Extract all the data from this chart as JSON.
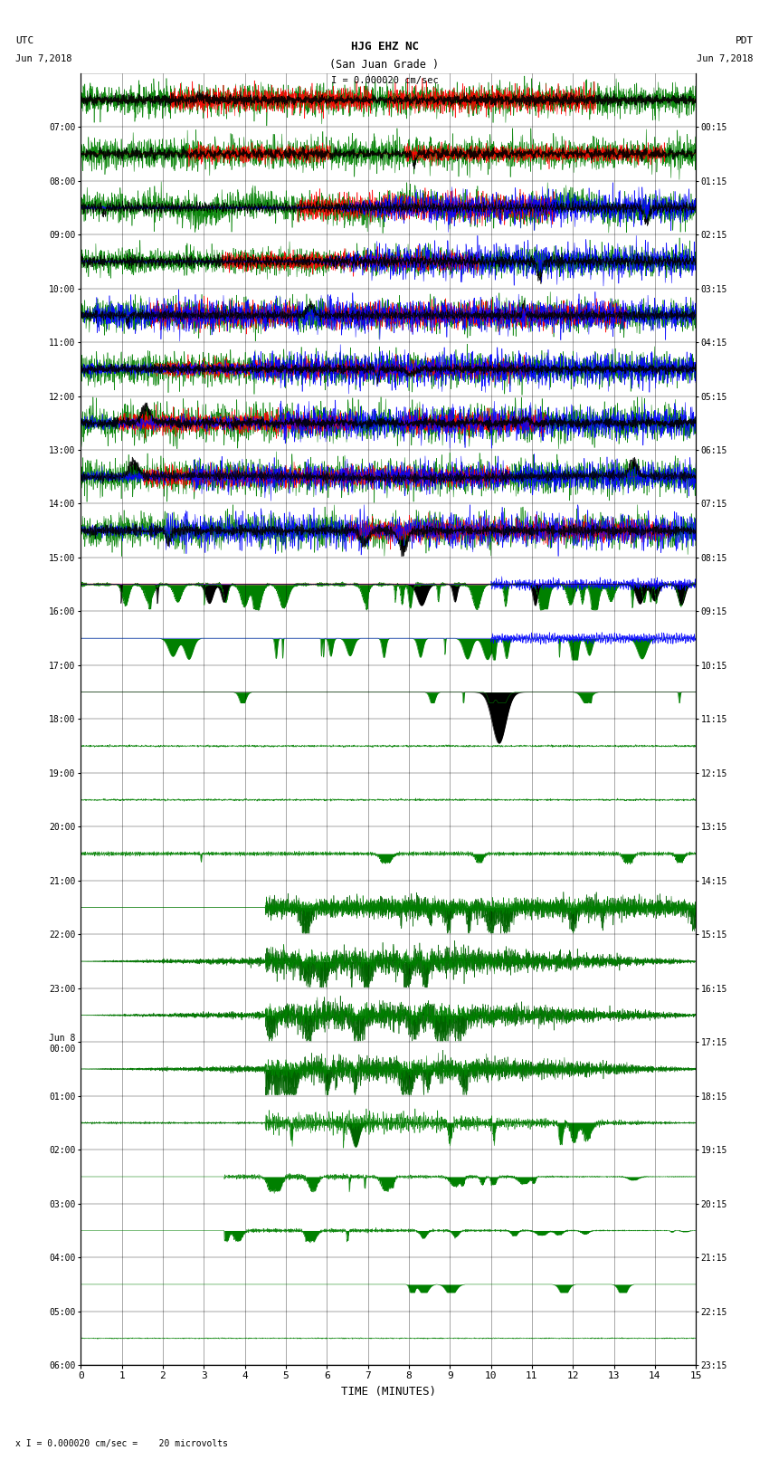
{
  "title_line1": "HJG EHZ NC",
  "title_line2": "(San Juan Grade )",
  "scale_label": "I = 0.000020 cm/sec",
  "xlabel": "TIME (MINUTES)",
  "footer_label": "x I = 0.000020 cm/sec =    20 microvolts",
  "utc_times": [
    "07:00",
    "08:00",
    "09:00",
    "10:00",
    "11:00",
    "12:00",
    "13:00",
    "14:00",
    "15:00",
    "16:00",
    "17:00",
    "18:00",
    "19:00",
    "20:00",
    "21:00",
    "22:00",
    "23:00",
    "Jun 8\n00:00",
    "01:00",
    "02:00",
    "03:00",
    "04:00",
    "05:00",
    "06:00"
  ],
  "pdt_times": [
    "00:15",
    "01:15",
    "02:15",
    "03:15",
    "04:15",
    "05:15",
    "06:15",
    "07:15",
    "08:15",
    "09:15",
    "10:15",
    "11:15",
    "12:15",
    "13:15",
    "14:15",
    "15:15",
    "16:15",
    "17:15",
    "18:15",
    "19:15",
    "20:15",
    "21:15",
    "22:15",
    "23:15"
  ],
  "num_rows": 24,
  "fig_width": 8.5,
  "fig_height": 16.13
}
